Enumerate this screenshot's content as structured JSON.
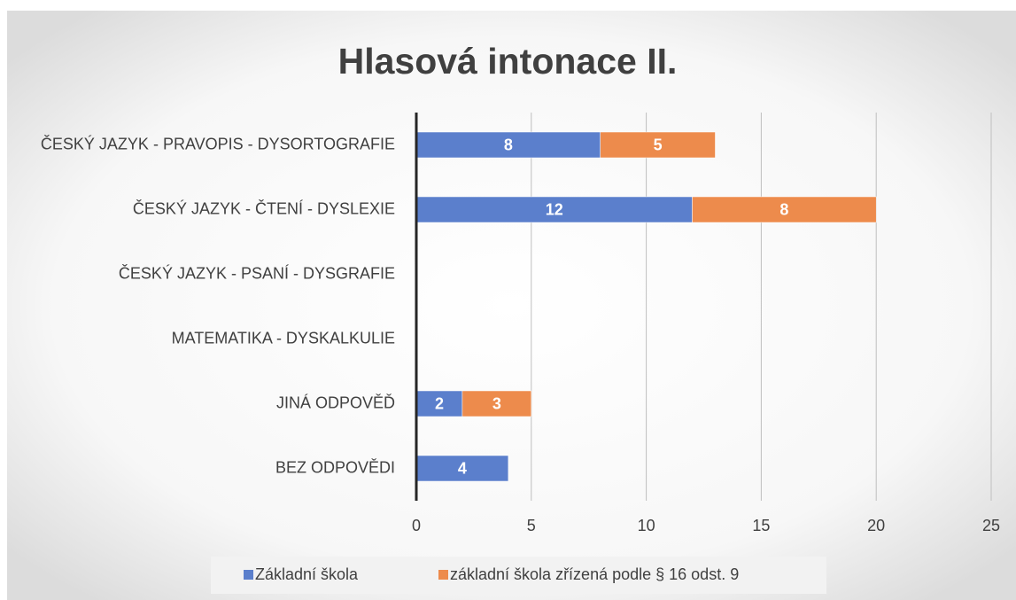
{
  "chart_data": {
    "type": "bar",
    "orientation": "horizontal",
    "stacked": true,
    "title": "Hlasová intonace II.",
    "categories": [
      "ČESKÝ JAZYK - PRAVOPIS - DYSORTOGRAFIE",
      "ČESKÝ JAZYK - ČTENÍ - DYSLEXIE",
      "ČESKÝ JAZYK - PSANÍ - DYSGRAFIE",
      "MATEMATIKA - DYSKALKULIE",
      "JINÁ ODPOVĚĎ",
      "BEZ ODPOVĚDI"
    ],
    "series": [
      {
        "name": "Základní škola",
        "color": "#5b7fcc",
        "values": [
          8,
          12,
          null,
          null,
          2,
          4
        ]
      },
      {
        "name": "základní škola zřízená podle § 16 odst. 9",
        "color": "#ed8b4c",
        "values": [
          5,
          8,
          null,
          null,
          3,
          null
        ]
      }
    ],
    "xlim": [
      0,
      25
    ],
    "xticks": [
      0,
      5,
      10,
      15,
      20,
      25
    ],
    "grid": true,
    "legend": "bottom"
  }
}
